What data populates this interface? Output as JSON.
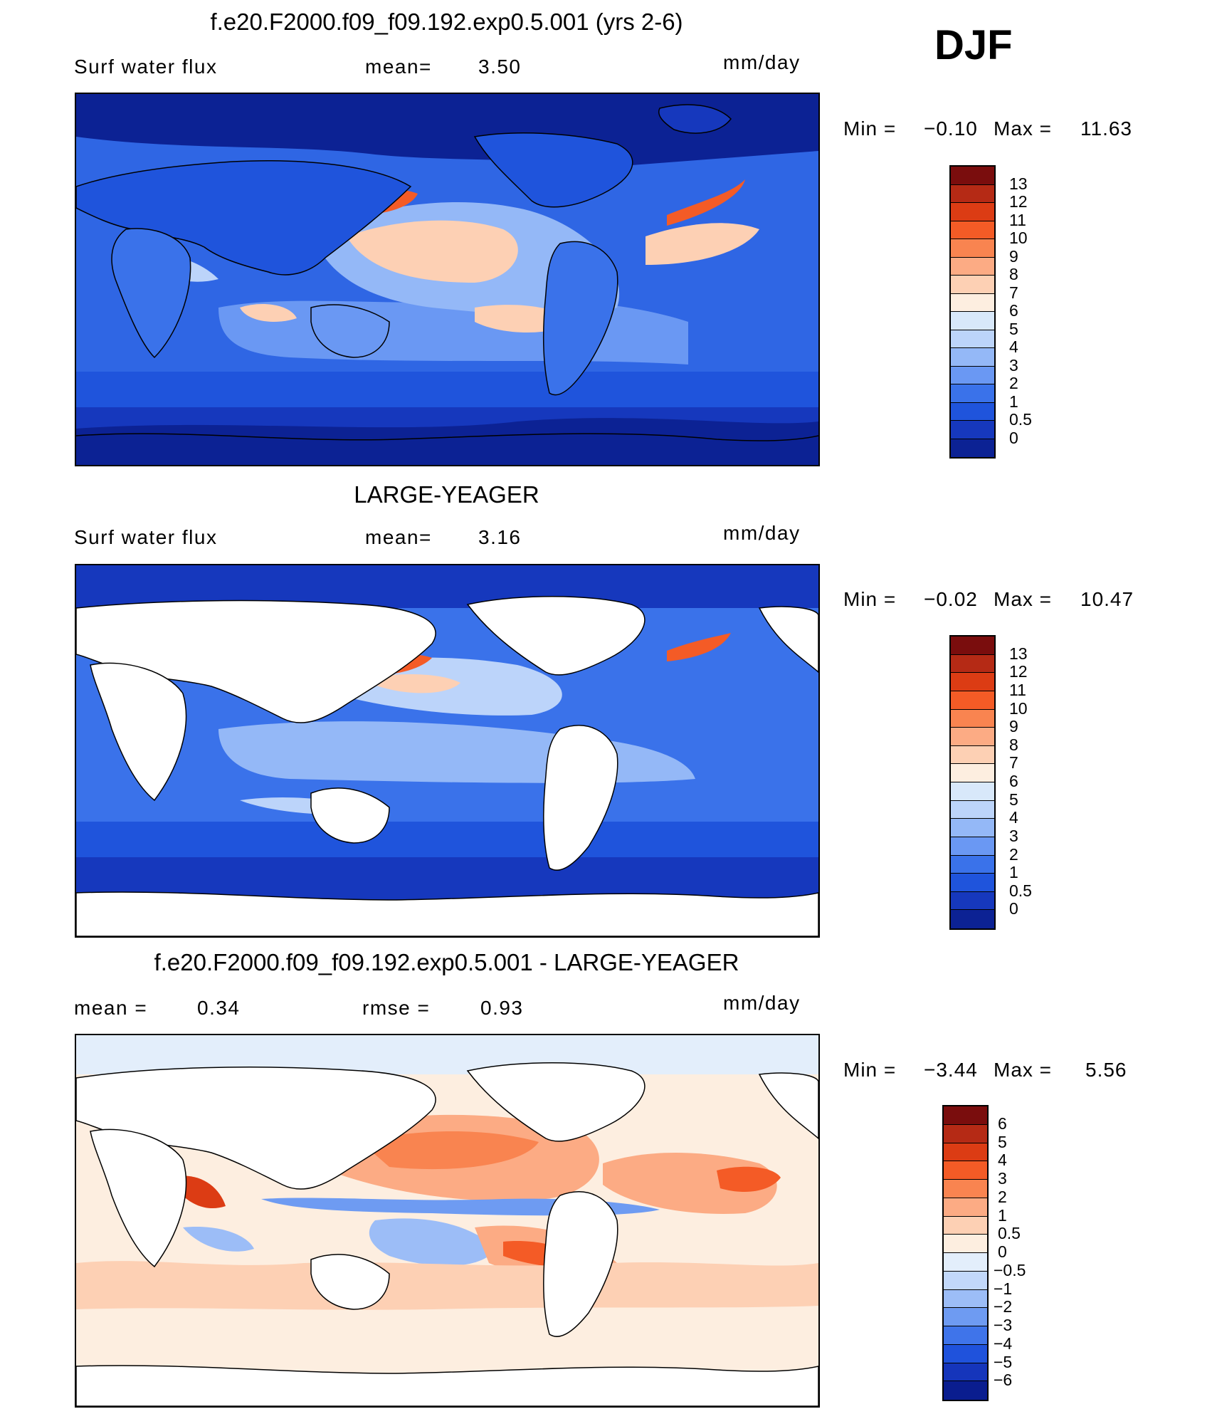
{
  "season": "DJF",
  "panels": [
    {
      "id": "model",
      "title": "f.e20.F2000.f09_f09.192.exp0.5.001 (yrs 2-6)",
      "left_label": "Surf water flux",
      "mid_label": "mean=",
      "mid_value": "3.50",
      "units": "mm/day",
      "min_label": "Min =",
      "min_value": "−0.10",
      "max_label": "Max =",
      "max_value": "11.63",
      "colorbar": {
        "colors": [
          "#7a0d0d",
          "#b52a15",
          "#dc3c14",
          "#f45b26",
          "#f98450",
          "#fcab84",
          "#fdd0b4",
          "#fdeee0",
          "#d8e8fa",
          "#bcd4fa",
          "#94b8f7",
          "#6a98f3",
          "#3a72ea",
          "#1f54dc",
          "#1638bd",
          "#0c2294"
        ],
        "ticks": [
          "13",
          "12",
          "11",
          "10",
          "9",
          "8",
          "7",
          "6",
          "5",
          "4",
          "3",
          "2",
          "1",
          "0.5",
          "0"
        ]
      }
    },
    {
      "id": "obs",
      "title": "LARGE-YEAGER",
      "left_label": "Surf water flux",
      "mid_label": "mean=",
      "mid_value": "3.16",
      "units": "mm/day",
      "min_label": "Min =",
      "min_value": "−0.02",
      "max_label": "Max =",
      "max_value": "10.47",
      "colorbar": {
        "colors": [
          "#7a0d0d",
          "#b52a15",
          "#dc3c14",
          "#f45b26",
          "#f98450",
          "#fcab84",
          "#fdd0b4",
          "#fdeee0",
          "#d8e8fa",
          "#bcd4fa",
          "#94b8f7",
          "#6a98f3",
          "#3a72ea",
          "#1f54dc",
          "#1638bd",
          "#0c2294"
        ],
        "ticks": [
          "13",
          "12",
          "11",
          "10",
          "9",
          "8",
          "7",
          "6",
          "5",
          "4",
          "3",
          "2",
          "1",
          "0.5",
          "0"
        ]
      }
    },
    {
      "id": "diff",
      "title": "f.e20.F2000.f09_f09.192.exp0.5.001 - LARGE-YEAGER",
      "left_label": "mean =",
      "left_value": "0.34",
      "mid_label": "rmse =",
      "mid_value": "0.93",
      "units": "mm/day",
      "min_label": "Min =",
      "min_value": "−3.44",
      "max_label": "Max =",
      "max_value": "5.56",
      "colorbar": {
        "colors": [
          "#7a0d0d",
          "#b52a15",
          "#dc3c14",
          "#f45b26",
          "#f98450",
          "#fcab84",
          "#fdd0b4",
          "#fdeee0",
          "#e3eefb",
          "#c2d8fa",
          "#9cbdf7",
          "#6e9bf2",
          "#3f74ea",
          "#1f52dc",
          "#1535bb",
          "#0a1d8f"
        ],
        "ticks": [
          "6",
          "5",
          "4",
          "3",
          "2",
          "1",
          "0.5",
          "0",
          "−0.5",
          "−1",
          "−2",
          "−3",
          "−4",
          "−5",
          "−6"
        ]
      }
    }
  ]
}
